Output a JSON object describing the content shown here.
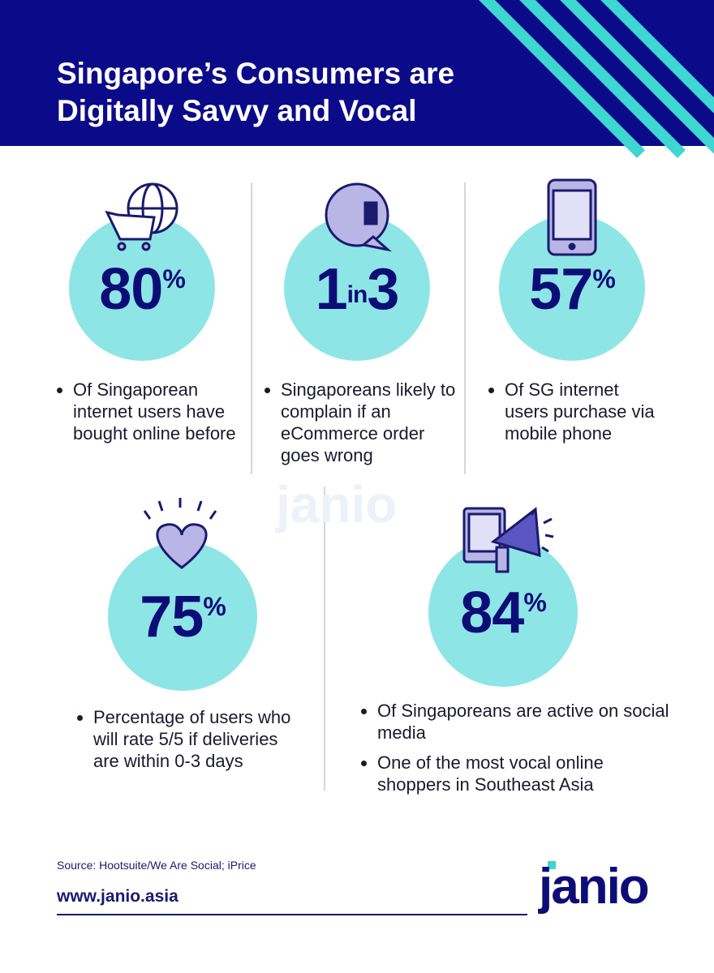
{
  "header": {
    "title_lines": [
      "Singapore’s Consumers are",
      "Digitally Savvy and Vocal"
    ]
  },
  "stats": [
    {
      "figure_parts": [
        "80",
        "%"
      ],
      "bullets": [
        "Of Singaporean internet users have bought online before"
      ]
    },
    {
      "figure_parts": [
        "1",
        "in",
        "3"
      ],
      "bullets": [
        "Singaporeans likely to complain if an eCommerce order goes wrong"
      ]
    },
    {
      "figure_parts": [
        "57",
        "%"
      ],
      "bullets": [
        "Of SG internet users purchase via mobile phone"
      ]
    },
    {
      "figure_parts": [
        "75",
        "%"
      ],
      "bullets": [
        "Percentage of users who will rate 5/5 if deliveries are within 0-3 days"
      ]
    },
    {
      "figure_parts": [
        "84",
        "%"
      ],
      "bullets": [
        "Of Singaporeans are active on social media",
        "One of the most vocal online shoppers in Southeast Asia"
      ]
    }
  ],
  "footer": {
    "source": "Source: Hootsuite/We Are Social; iPrice",
    "url": "www.janio.asia",
    "logo": "janio"
  }
}
